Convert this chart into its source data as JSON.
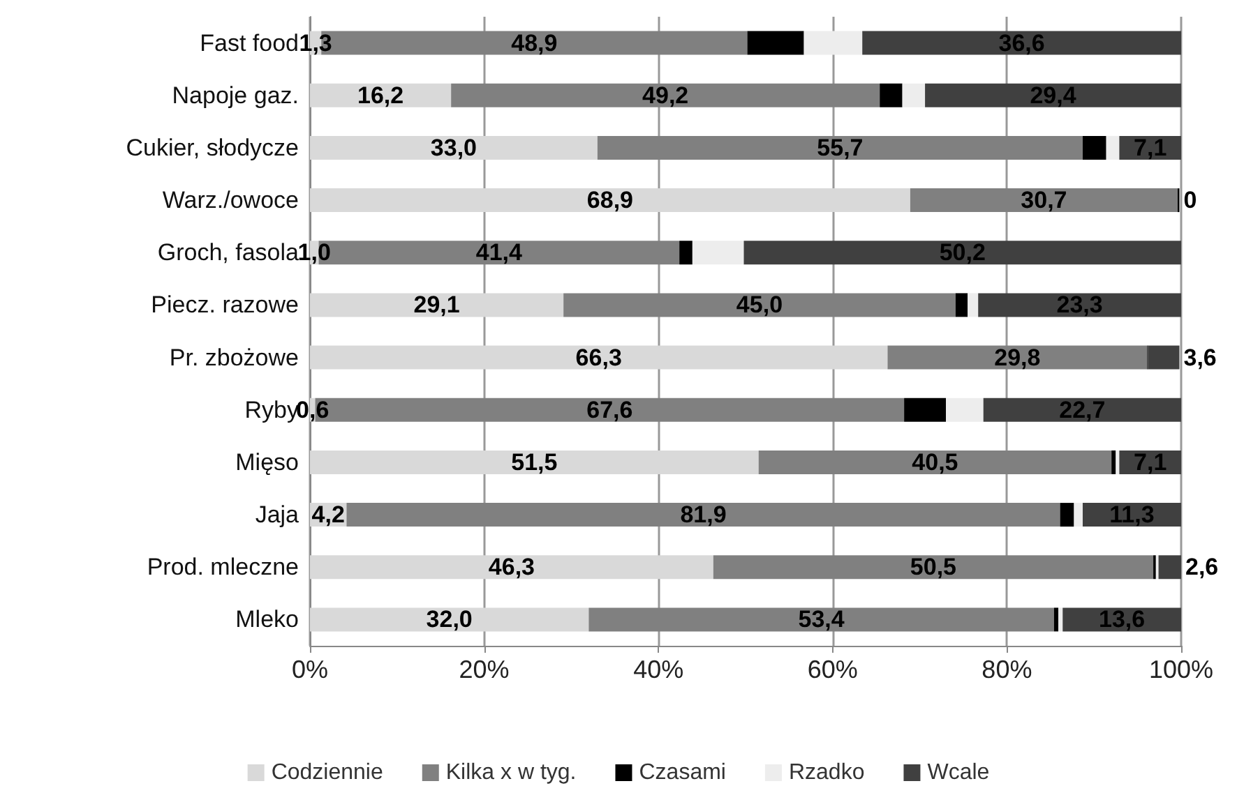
{
  "chart_data": {
    "type": "bar",
    "orientation": "horizontal",
    "stacked": true,
    "categories": [
      "Fast food",
      "Napoje gaz.",
      "Cukier, słodycze",
      "Warz./owoce",
      "Groch, fasola",
      "Piecz. razowe",
      "Pr. zbożowe",
      "Ryby",
      "Mięso",
      "Jaja",
      "Prod. mleczne",
      "Mleko"
    ],
    "series": [
      {
        "name": "Codziennie",
        "color": "#d9d9d9",
        "values": [
          1.3,
          16.2,
          33.0,
          68.9,
          1.0,
          29.1,
          66.3,
          0.6,
          51.5,
          4.2,
          46.3,
          32.0
        ],
        "value_labels": [
          "1,3",
          "16,2",
          "33,0",
          "68,9",
          "1,0",
          "29,1",
          "66,3",
          "0,6",
          "51,5",
          "4,2",
          "46,3",
          "32,0"
        ]
      },
      {
        "name": "Kilka x w tyg.",
        "color": "#808080",
        "values": [
          48.9,
          49.2,
          55.7,
          30.7,
          41.4,
          45.0,
          29.8,
          67.6,
          40.5,
          81.9,
          50.5,
          53.4
        ],
        "value_labels": [
          "48,9",
          "49,2",
          "55,7",
          "30,7",
          "41,4",
          "45,0",
          "29,8",
          "67,6",
          "40,5",
          "81,9",
          "50,5",
          "53,4"
        ]
      },
      {
        "name": "Czasami",
        "color": "#000000",
        "values": [
          6.5,
          2.6,
          2.7,
          0.2,
          1.5,
          1.4,
          0.1,
          4.8,
          0.5,
          1.6,
          0.3,
          0.5
        ]
      },
      {
        "name": "Rzadko",
        "color": "#ededed",
        "values": [
          6.7,
          2.6,
          1.5,
          null,
          5.9,
          1.2,
          null,
          4.3,
          0.4,
          1.0,
          0.3,
          0.5
        ]
      },
      {
        "name": "Wcale",
        "color": "#404040",
        "values": [
          36.6,
          29.4,
          7.1,
          0,
          50.2,
          23.3,
          3.6,
          22.7,
          7.1,
          11.3,
          2.6,
          13.6
        ],
        "value_labels": [
          "36,6",
          "29,4",
          "7,1",
          "0",
          "50,2",
          "23,3",
          "3,6",
          "22,7",
          "7,1",
          "11,3",
          "2,6",
          "13,6"
        ]
      }
    ],
    "xlim": [
      0,
      100
    ],
    "xticks": [
      {
        "value": 0,
        "label": "0%"
      },
      {
        "value": 20,
        "label": "20%"
      },
      {
        "value": 40,
        "label": "40%"
      },
      {
        "value": 60,
        "label": "60%"
      },
      {
        "value": 80,
        "label": "80%"
      },
      {
        "value": 100,
        "label": "100%"
      }
    ],
    "grid": "x",
    "legend": "bottom"
  }
}
